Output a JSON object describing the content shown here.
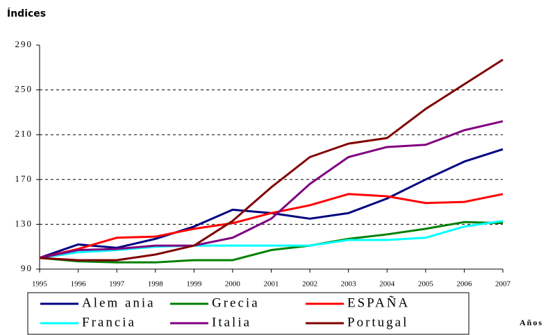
{
  "chart_data": {
    "type": "line",
    "title": "Índices",
    "x_label": "Años",
    "categories": [
      "1995",
      "1996",
      "1997",
      "1998",
      "1999",
      "2000",
      "2001",
      "2002",
      "2003",
      "2004",
      "2005",
      "2006",
      "2007"
    ],
    "ylim": [
      90,
      290
    ],
    "yticks": [
      90,
      130,
      170,
      210,
      250,
      290
    ],
    "grid": true,
    "series": [
      {
        "name": "Alem ania",
        "color": "#000080",
        "values": [
          100,
          112,
          109,
          117,
          128,
          143,
          140,
          135,
          140,
          153,
          170,
          186,
          197
        ]
      },
      {
        "name": "Grecia",
        "color": "#008000",
        "values": [
          100,
          97,
          96,
          96,
          98,
          98,
          107,
          111,
          117,
          121,
          126,
          132,
          131
        ]
      },
      {
        "name": "ESPAÑA",
        "color": "#ff0000",
        "values": [
          100,
          108,
          118,
          119,
          126,
          131,
          140,
          147,
          157,
          155,
          149,
          150,
          157
        ]
      },
      {
        "name": "Francia",
        "color": "#00ffff",
        "values": [
          100,
          105,
          107,
          110,
          111,
          111,
          111,
          111,
          116,
          116,
          118,
          128,
          133
        ]
      },
      {
        "name": "Italia",
        "color": "#800080",
        "values": [
          100,
          107,
          108,
          111,
          111,
          118,
          135,
          166,
          190,
          199,
          201,
          214,
          222
        ]
      },
      {
        "name": "Portugal",
        "color": "#800000",
        "values": [
          100,
          98,
          98,
          103,
          111,
          133,
          163,
          190,
          202,
          207,
          233,
          255,
          277
        ]
      }
    ]
  }
}
